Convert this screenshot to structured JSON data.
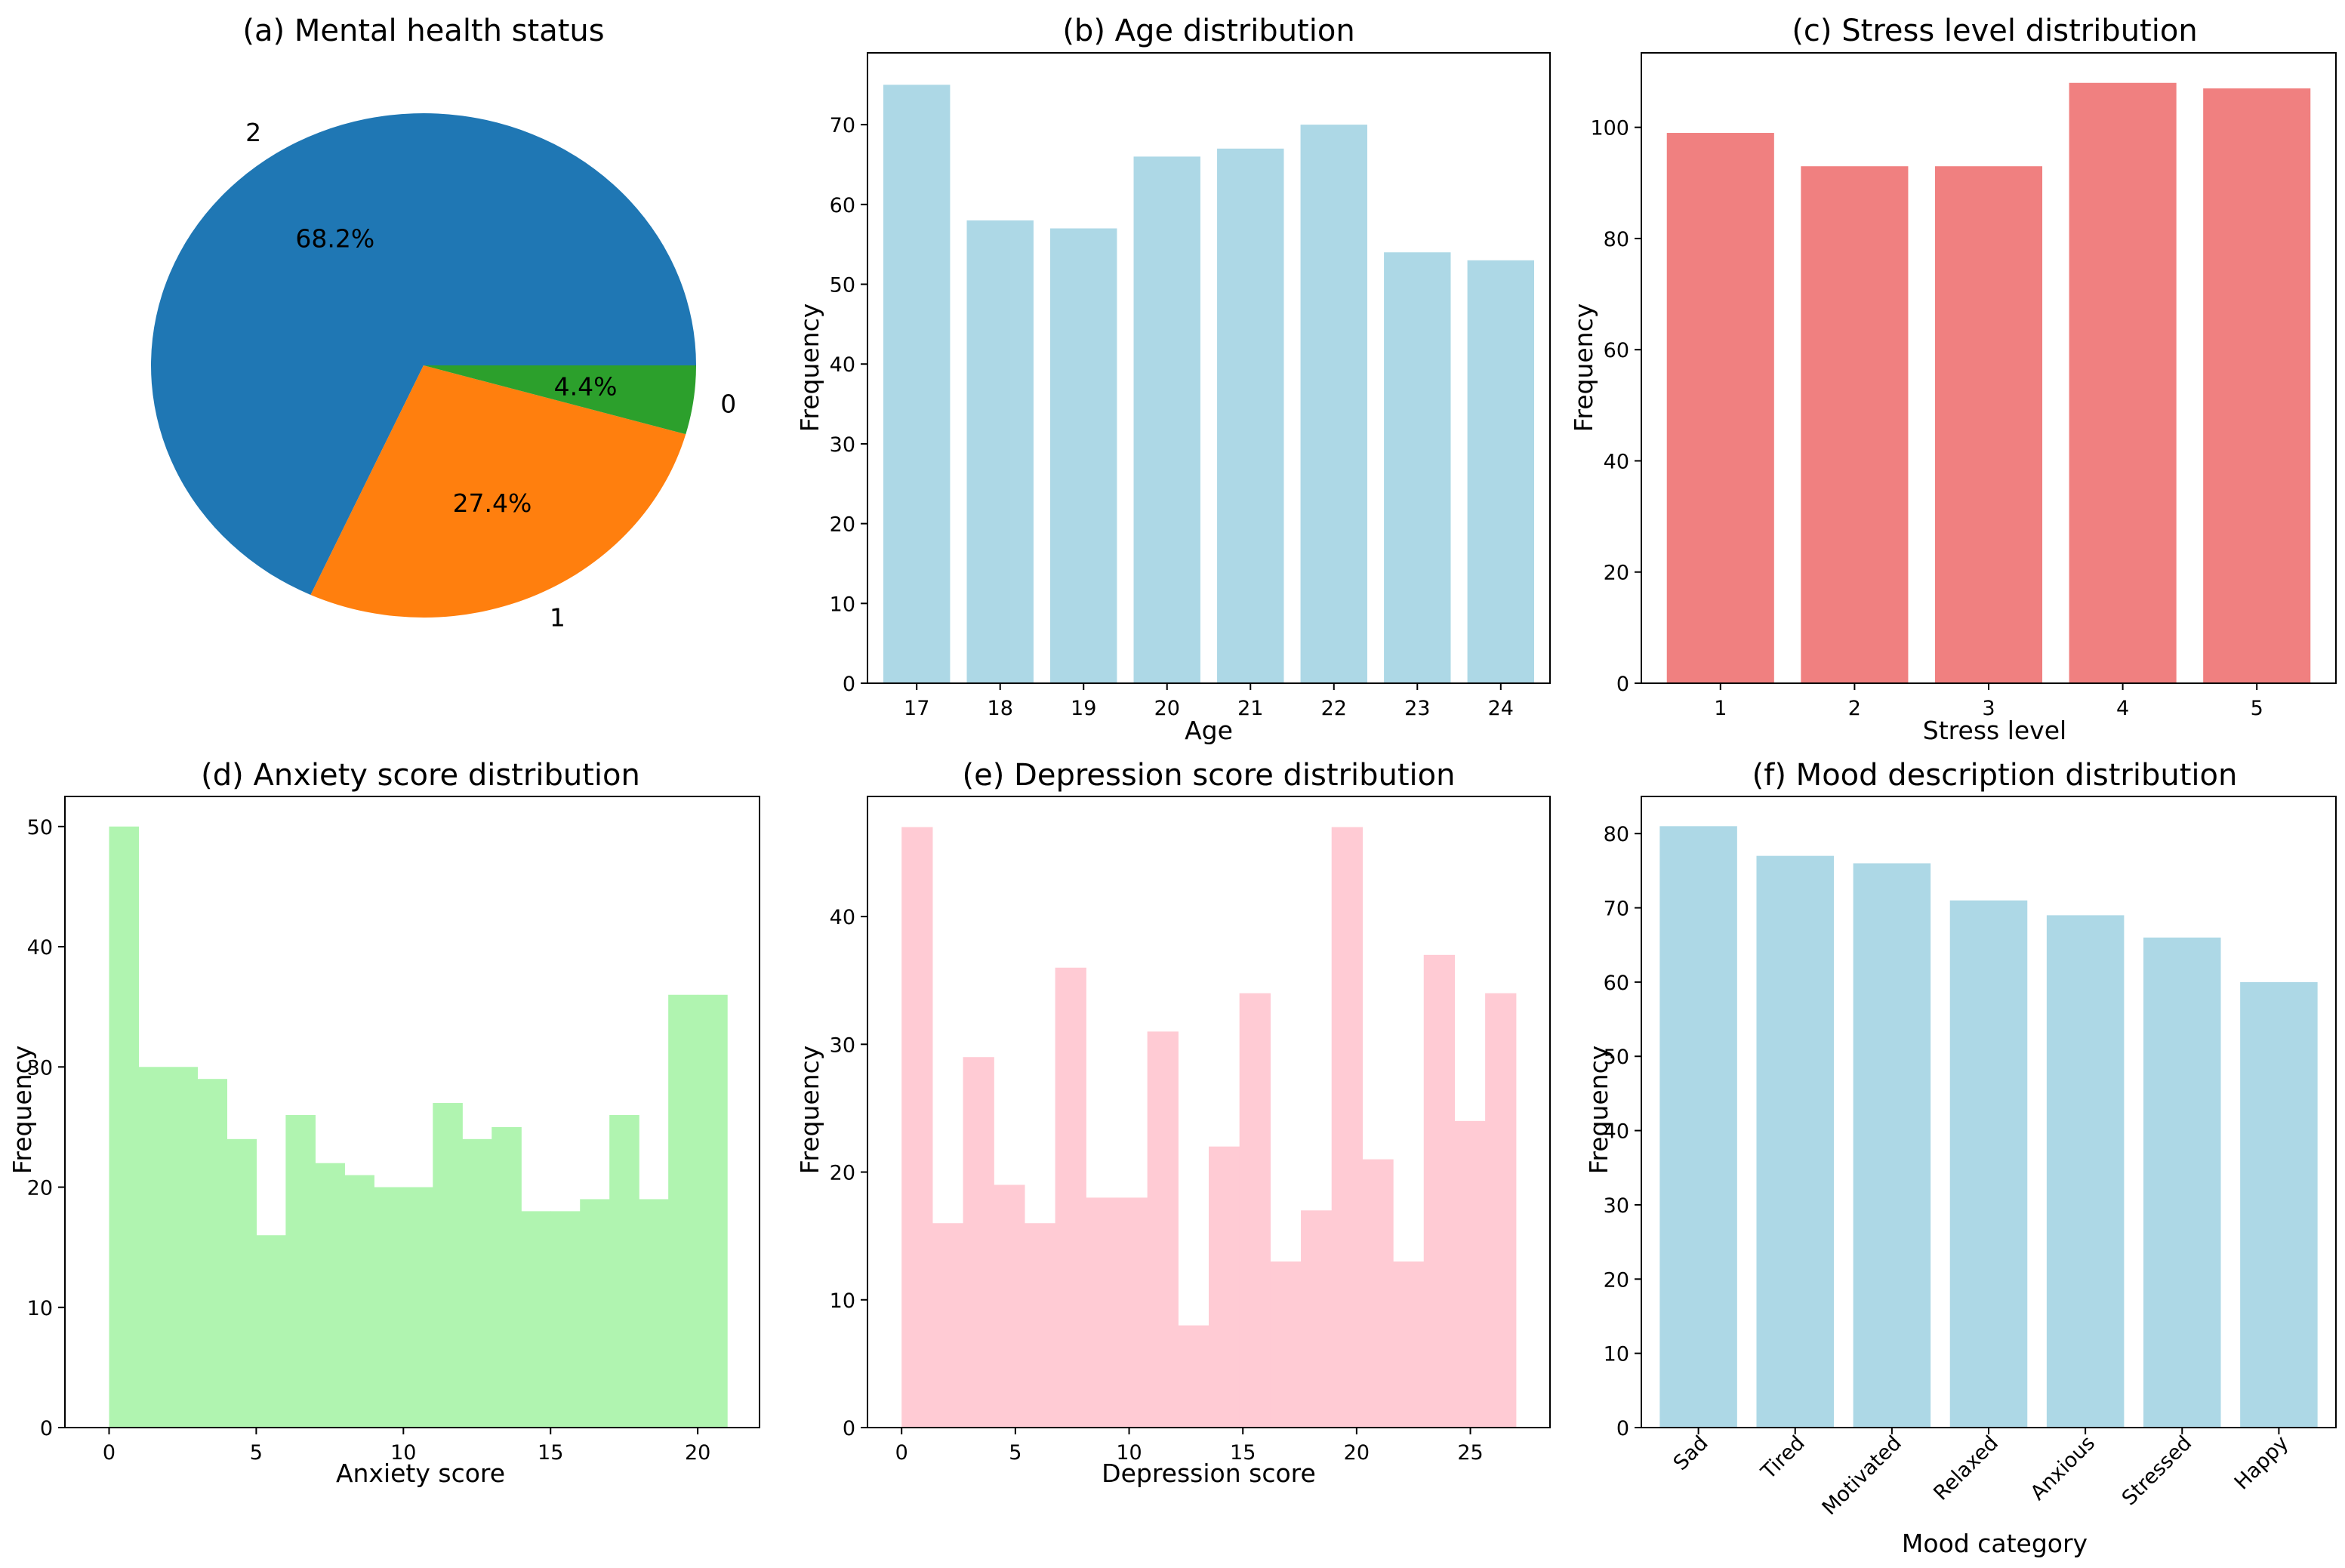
{
  "figure": {
    "background": "#ffffff"
  },
  "chart_data": [
    {
      "id": "a",
      "type": "pie",
      "title": "(a) Mental health status",
      "labels": [
        "2",
        "1",
        "0"
      ],
      "values": [
        68.2,
        27.4,
        4.4
      ],
      "percent_labels": [
        "68.2%",
        "27.4%",
        "4.4%"
      ],
      "colors": [
        "#1f77b4",
        "#ff7f0e",
        "#2ca02c"
      ]
    },
    {
      "id": "b",
      "type": "bar",
      "title": "(b) Age distribution",
      "xlabel": "Age",
      "ylabel": "Frequency",
      "categories": [
        "17",
        "18",
        "19",
        "20",
        "21",
        "22",
        "23",
        "24"
      ],
      "values": [
        75,
        58,
        57,
        66,
        67,
        70,
        54,
        53
      ],
      "ylim": [
        0,
        79
      ],
      "yticks": [
        0,
        10,
        20,
        30,
        40,
        50,
        60,
        70
      ],
      "color": "#add8e6"
    },
    {
      "id": "c",
      "type": "bar",
      "title": "(c) Stress level distribution",
      "xlabel": "Stress level",
      "ylabel": "Frequency",
      "categories": [
        "1",
        "2",
        "3",
        "4",
        "5"
      ],
      "values": [
        99,
        93,
        93,
        108,
        107
      ],
      "ylim": [
        0,
        113.4
      ],
      "yticks": [
        0,
        20,
        40,
        60,
        80,
        100
      ],
      "color": "#f08080"
    },
    {
      "id": "d",
      "type": "bar",
      "subtype": "histogram",
      "title": "(d) Anxiety score distribution",
      "xlabel": "Anxiety score",
      "ylabel": "Frequency",
      "bin_edges": [
        0,
        1,
        2,
        3,
        4,
        5,
        6,
        7,
        8,
        9,
        10,
        11,
        12,
        13,
        14,
        15,
        16,
        17,
        18,
        19,
        20,
        21
      ],
      "values": [
        50,
        30,
        30,
        29,
        24,
        16,
        26,
        22,
        21,
        20,
        20,
        27,
        24,
        25,
        18,
        18,
        19,
        26,
        19,
        36,
        36
      ],
      "xlim": [
        -1.5,
        22.1
      ],
      "ylim": [
        0,
        52.5
      ],
      "xticks": [
        0,
        5,
        10,
        15,
        20
      ],
      "yticks": [
        0,
        10,
        20,
        30,
        40,
        50
      ],
      "color": "#b0f4b0"
    },
    {
      "id": "e",
      "type": "bar",
      "subtype": "histogram",
      "title": "(e) Depression score distribution",
      "xlabel": "Depression score",
      "ylabel": "Frequency",
      "bin_edges": [
        0,
        1.35,
        2.7,
        4.05,
        5.4,
        6.75,
        8.1,
        9.45,
        10.8,
        12.15,
        13.5,
        14.85,
        16.2,
        17.55,
        18.9,
        20.25,
        21.6,
        22.95,
        24.3,
        25.65,
        27
      ],
      "values": [
        47,
        16,
        29,
        19,
        16,
        36,
        18,
        18,
        31,
        8,
        22,
        34,
        13,
        17,
        47,
        21,
        13,
        37,
        24,
        34
      ],
      "xlim": [
        -1.5,
        28.5
      ],
      "ylim": [
        0,
        49.4
      ],
      "xticks": [
        0,
        5,
        10,
        15,
        20,
        25
      ],
      "yticks": [
        0,
        10,
        20,
        30,
        40
      ],
      "color": "#ffcbd4"
    },
    {
      "id": "f",
      "type": "bar",
      "title": "(f) Mood description distribution",
      "xlabel": "Mood category",
      "ylabel": "Frequency",
      "categories": [
        "Sad",
        "Tired",
        "Motivated",
        "Relaxed",
        "Anxious",
        "Stressed",
        "Happy"
      ],
      "values": [
        81,
        77,
        76,
        71,
        69,
        66,
        60
      ],
      "ylim": [
        0,
        85
      ],
      "yticks": [
        0,
        10,
        20,
        30,
        40,
        50,
        60,
        70,
        80
      ],
      "color": "#add8e6"
    }
  ]
}
